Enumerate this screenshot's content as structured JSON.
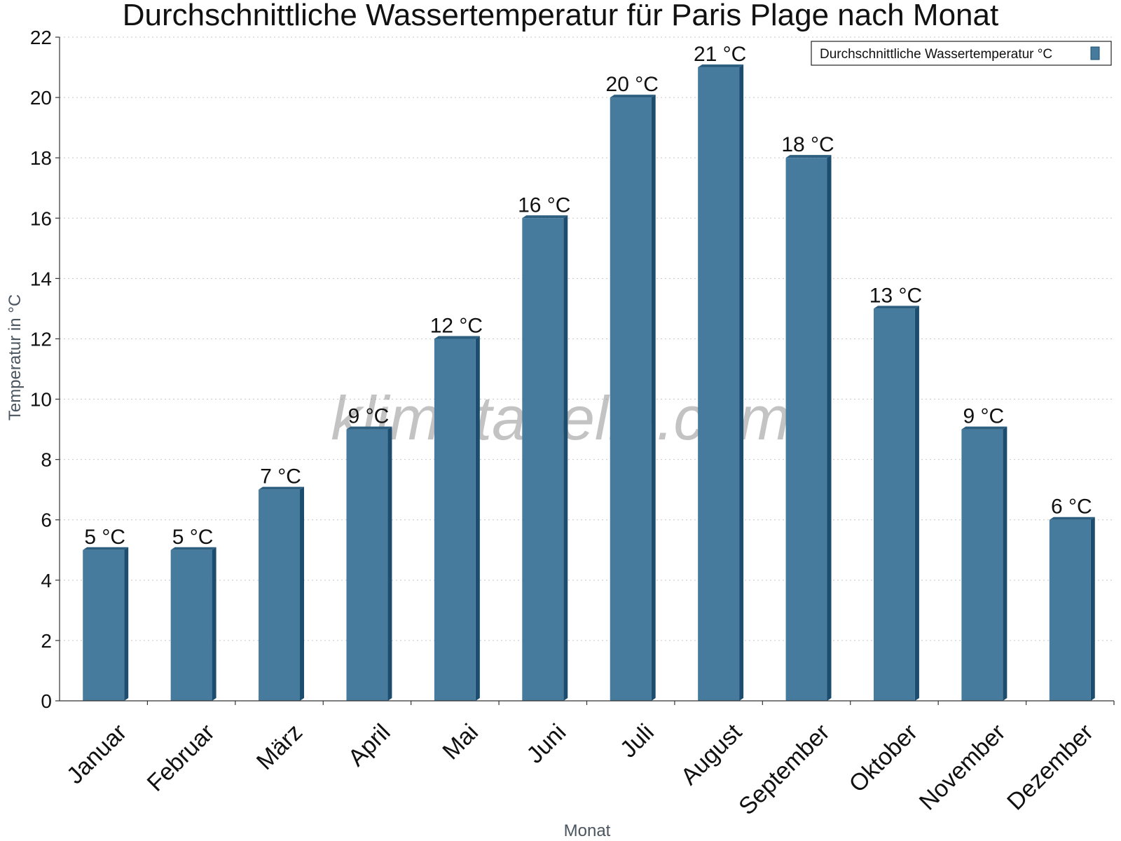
{
  "colors": {
    "bar_face": "#467b9e",
    "bar_side": "#1c4d6e",
    "bar_top": "#2c5f80"
  },
  "watermark": "klimatabelle.com",
  "chart_data": {
    "type": "bar",
    "title": "Durchschnittliche Wassertemperatur für Paris Plage nach Monat",
    "xlabel": "Monat",
    "ylabel": "Temperatur in °C",
    "ylim": [
      0,
      22
    ],
    "yticks": [
      0,
      2,
      4,
      6,
      8,
      10,
      12,
      14,
      16,
      18,
      20,
      22
    ],
    "grid": true,
    "legend_position": "top-right",
    "categories": [
      "Januar",
      "Februar",
      "März",
      "April",
      "Mai",
      "Juni",
      "Juli",
      "August",
      "September",
      "Oktober",
      "November",
      "Dezember"
    ],
    "series": [
      {
        "name": "Durchschnittliche Wassertemperatur °C",
        "values": [
          5,
          5,
          7,
          9,
          12,
          16,
          20,
          21,
          18,
          13,
          9,
          6
        ],
        "labels": [
          "5 °C",
          "5 °C",
          "7 °C",
          "9 °C",
          "12 °C",
          "16 °C",
          "20 °C",
          "21 °C",
          "18 °C",
          "13 °C",
          "9 °C",
          "6 °C"
        ]
      }
    ]
  }
}
